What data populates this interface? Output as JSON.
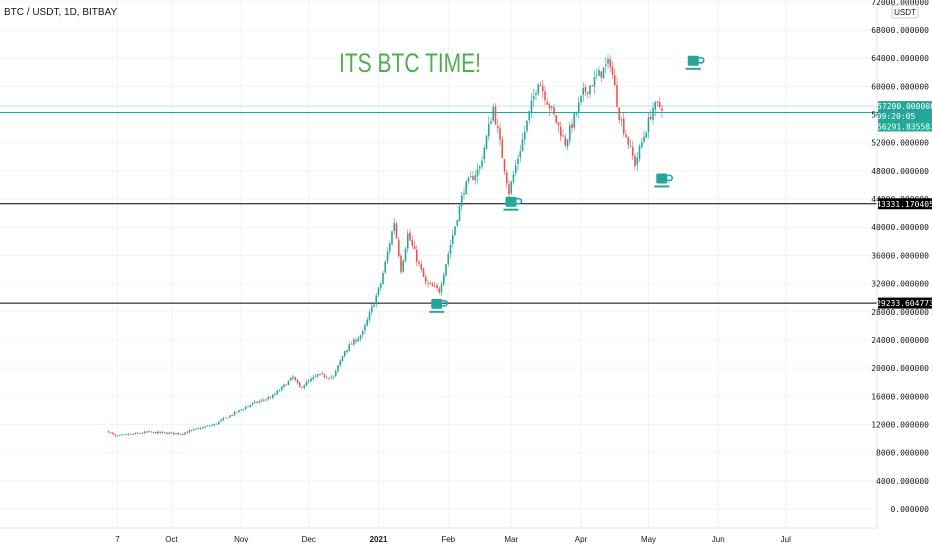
{
  "header": {
    "symbol_title": "BTC / USDT, 1D, BITBAY",
    "currency_label": "USDT"
  },
  "annotation": {
    "headline": "ITS BTC TIME!",
    "cups": [
      {
        "date": "2021-05-22",
        "price": 63200
      },
      {
        "date": "2021-05-08",
        "price": 46500
      },
      {
        "date": "2021-03-02",
        "price": 43200
      },
      {
        "date": "2021-01-28",
        "price": 28700
      }
    ]
  },
  "colors": {
    "up": "#26a69a",
    "down": "#ef5350",
    "headline": "#4caf50",
    "teal_line": "#22ab94",
    "black_line": "#000000",
    "grid": "#f0f3fa"
  },
  "price_labels": {
    "current": "57200.000000",
    "countdown": "09:20:05",
    "teal_line": "56291.835583",
    "upper_level": "43331.170405",
    "lower_level": "29233.604773"
  },
  "chart_data": {
    "type": "candlestick",
    "title": "BTC / USDT, 1D, BITBAY",
    "y_axis": {
      "unit": "USDT",
      "ylim": [
        -2000,
        74000
      ],
      "ticks": [
        0,
        4000,
        8000,
        12000,
        16000,
        20000,
        24000,
        28000,
        32000,
        36000,
        40000,
        44000,
        48000,
        52000,
        56000,
        60000,
        64000,
        68000,
        72000
      ],
      "tick_labels": [
        "0.000000",
        "4000.000000",
        "8000.000000",
        "12000.000000",
        "16000.000000",
        "20000.000000",
        "24000.000000",
        "28000.000000",
        "32000.000000",
        "36000.000000",
        "40000.000000",
        "44000.000000",
        "48000.000000",
        "52000.000000",
        "56000.000000",
        "60000.000000",
        "64000.000000",
        "68000.000000",
        "72000.000000"
      ]
    },
    "x_axis": {
      "range": [
        "2020-08-24",
        "2021-07-15"
      ],
      "ticks": [
        {
          "date": "2020-09-07",
          "label": "7"
        },
        {
          "date": "2020-10-01",
          "label": "Oct"
        },
        {
          "date": "2020-11-01",
          "label": "Nov"
        },
        {
          "date": "2020-12-01",
          "label": "Dec"
        },
        {
          "date": "2021-01-01",
          "label": "2021"
        },
        {
          "date": "2021-02-01",
          "label": "Feb"
        },
        {
          "date": "2021-03-01",
          "label": "Mar"
        },
        {
          "date": "2021-04-01",
          "label": "Apr"
        },
        {
          "date": "2021-05-01",
          "label": "May"
        },
        {
          "date": "2021-06-01",
          "label": "Jun"
        },
        {
          "date": "2021-07-01",
          "label": "Jul"
        }
      ]
    },
    "horizontal_lines": [
      {
        "price": 57200,
        "color": "#22ab94"
      },
      {
        "price": 56291.835583,
        "color": "#22ab94"
      },
      {
        "price": 43331.170405,
        "color": "#000000"
      },
      {
        "price": 29233.604773,
        "color": "#000000"
      }
    ],
    "path": [
      {
        "date": "2020-09-03",
        "close": 11000
      },
      {
        "date": "2020-09-06",
        "close": 10300
      },
      {
        "date": "2020-09-20",
        "close": 10900
      },
      {
        "date": "2020-10-05",
        "close": 10700
      },
      {
        "date": "2020-10-20",
        "close": 12000
      },
      {
        "date": "2020-10-26",
        "close": 13100
      },
      {
        "date": "2020-11-05",
        "close": 14800
      },
      {
        "date": "2020-11-15",
        "close": 16000
      },
      {
        "date": "2020-11-24",
        "close": 18700
      },
      {
        "date": "2020-11-27",
        "close": 17200
      },
      {
        "date": "2020-12-05",
        "close": 19000
      },
      {
        "date": "2020-12-12",
        "close": 18700
      },
      {
        "date": "2020-12-17",
        "close": 22500
      },
      {
        "date": "2020-12-25",
        "close": 25000
      },
      {
        "date": "2021-01-02",
        "close": 32000
      },
      {
        "date": "2021-01-08",
        "close": 40800
      },
      {
        "date": "2021-01-11",
        "close": 34000
      },
      {
        "date": "2021-01-14",
        "close": 39000
      },
      {
        "date": "2021-01-22",
        "close": 32000
      },
      {
        "date": "2021-01-28",
        "close": 31000
      },
      {
        "date": "2021-02-08",
        "close": 45500
      },
      {
        "date": "2021-02-15",
        "close": 48500
      },
      {
        "date": "2021-02-21",
        "close": 57000
      },
      {
        "date": "2021-02-28",
        "close": 45000
      },
      {
        "date": "2021-03-13",
        "close": 61000
      },
      {
        "date": "2021-03-25",
        "close": 52000
      },
      {
        "date": "2021-04-02",
        "close": 59000
      },
      {
        "date": "2021-04-14",
        "close": 63500
      },
      {
        "date": "2021-04-18",
        "close": 56000
      },
      {
        "date": "2021-04-25",
        "close": 49000
      },
      {
        "date": "2021-05-03",
        "close": 57000
      },
      {
        "date": "2021-05-07",
        "close": 57200
      }
    ]
  }
}
